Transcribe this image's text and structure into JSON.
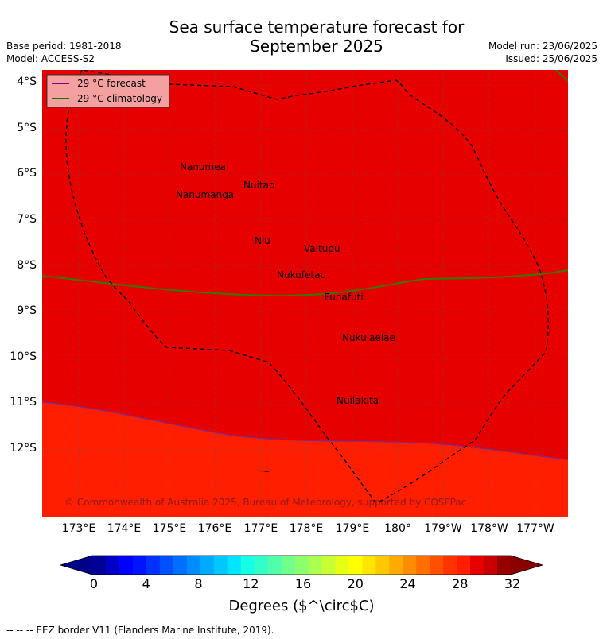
{
  "header": {
    "title_line1": "Sea surface temperature forecast for",
    "title_line2": "September 2025",
    "base_period": "Base period: 1981-2018",
    "model": "Model: ACCESS-S2",
    "model_run": "Model run: 23/06/2025",
    "issued": "Issued: 25/06/2025"
  },
  "legend": {
    "items": [
      {
        "label": "29 °C  forecast",
        "color": "#800080"
      },
      {
        "label": "29 °C  climatology",
        "color": "#008000"
      }
    ]
  },
  "map": {
    "lon_labels": [
      "173°E",
      "174°E",
      "175°E",
      "176°E",
      "177°E",
      "178°E",
      "179°E",
      "180°",
      "179°W",
      "178°W",
      "177°W"
    ],
    "lat_labels": [
      "4°S",
      "5°S",
      "6°S",
      "7°S",
      "8°S",
      "9°S",
      "10°S",
      "11°S",
      "12°S"
    ],
    "places": [
      {
        "name": "Nanumea"
      },
      {
        "name": "Nuitao"
      },
      {
        "name": "Nanumanga"
      },
      {
        "name": "Niu"
      },
      {
        "name": "Vaitupu"
      },
      {
        "name": "Nukufetau"
      },
      {
        "name": "Funafuti"
      },
      {
        "name": "Nukulaelae"
      },
      {
        "name": "Nuilakita"
      }
    ],
    "copyright": "© Commonwealth of Australia 2025, Bureau of Meteorology, supported by COSPPac",
    "colors": {
      "warm": "#e60000",
      "cooler": "#ff1e00",
      "eez": "#000000"
    }
  },
  "colorbar": {
    "ticks": [
      "0",
      "4",
      "8",
      "12",
      "16",
      "20",
      "24",
      "28",
      "32"
    ],
    "units": "Degrees ($^\\circ$C)",
    "colors": [
      "#000096",
      "#0000c8",
      "#0000ff",
      "#0014ff",
      "#0032ff",
      "#0050ff",
      "#006eff",
      "#008cff",
      "#00aaff",
      "#00c8ff",
      "#00e6ff",
      "#14ffe6",
      "#32ffc8",
      "#50ffaa",
      "#6eff8c",
      "#8cff6e",
      "#aaff50",
      "#c8ff32",
      "#e6ff14",
      "#ffff00",
      "#ffe600",
      "#ffc800",
      "#ffaa00",
      "#ff8c00",
      "#ff6e00",
      "#ff5000",
      "#ff3200",
      "#ff1e00",
      "#e60000",
      "#c80000",
      "#960000"
    ]
  },
  "footer": "-- -- -- EEZ border V11 (Flanders Marine Institute, 2019)."
}
